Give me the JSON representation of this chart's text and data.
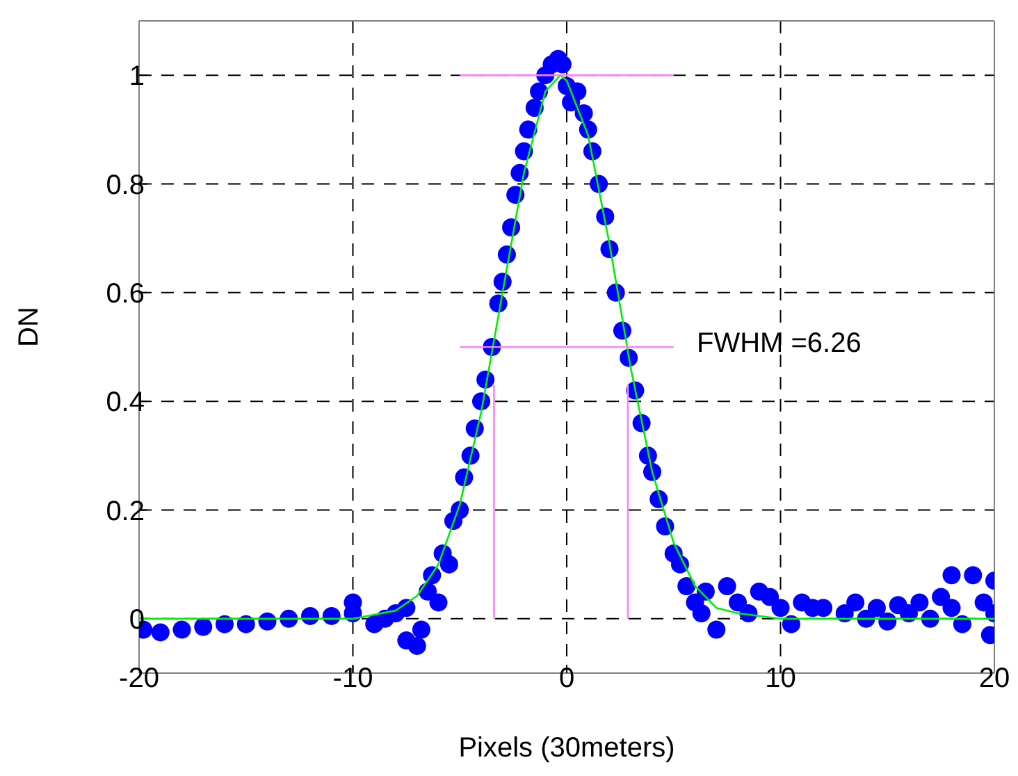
{
  "chart_data": {
    "type": "scatter",
    "xlabel": "Pixels (30meters)",
    "ylabel": "DN",
    "annotations": [
      "FWHM =6.26"
    ],
    "xlim": [
      -20,
      20
    ],
    "xticks": [
      -20,
      -10,
      0,
      10,
      20
    ],
    "ylim": [
      -0.1,
      1.1
    ],
    "yticks": [
      0,
      0.2,
      0.4,
      0.6,
      0.8,
      1
    ],
    "grid": true,
    "legend": false,
    "series": [
      {
        "type": "scatter",
        "marker": "circle",
        "color": "#0000ff",
        "x": [
          -19.8,
          -19,
          -18,
          -17,
          -16,
          -15,
          -14,
          -13,
          -12,
          -11,
          -10,
          -10,
          -9,
          -8.5,
          -8,
          -7.5,
          -7.5,
          -7,
          -6.8,
          -6.5,
          -6.3,
          -6,
          -5.8,
          -5.5,
          -5.3,
          -5,
          -4.8,
          -4.5,
          -4.3,
          -4,
          -3.8,
          -3.5,
          -3.2,
          -3,
          -2.8,
          -2.6,
          -2.4,
          -2.2,
          -2,
          -1.8,
          -1.5,
          -1.3,
          -1,
          -0.7,
          -0.4,
          -0.2,
          0,
          0.2,
          0.5,
          0.8,
          1,
          1.2,
          1.5,
          1.8,
          2,
          2.3,
          2.6,
          2.9,
          3.2,
          3.5,
          3.8,
          4,
          4.3,
          4.6,
          5,
          5.3,
          5.6,
          6,
          6.3,
          6.5,
          7,
          7.5,
          8,
          8.5,
          9,
          9.5,
          10,
          10.5,
          11,
          11.5,
          12,
          13,
          13.5,
          14,
          14.5,
          15,
          15.5,
          16,
          16.5,
          17,
          17.5,
          18,
          18,
          18.5,
          19,
          19.5,
          20,
          19.8,
          20
        ],
        "values": [
          -0.02,
          -0.025,
          -0.02,
          -0.015,
          -0.01,
          -0.01,
          -0.005,
          0,
          0.005,
          0.005,
          0.01,
          0.03,
          -0.01,
          0,
          0.01,
          0.02,
          -0.04,
          -0.05,
          -0.02,
          0.05,
          0.08,
          0.03,
          0.12,
          0.1,
          0.18,
          0.2,
          0.26,
          0.3,
          0.35,
          0.4,
          0.44,
          0.5,
          0.58,
          0.62,
          0.67,
          0.72,
          0.78,
          0.82,
          0.86,
          0.9,
          0.94,
          0.97,
          1,
          1.02,
          1.03,
          1.02,
          0.98,
          0.95,
          0.97,
          0.93,
          0.9,
          0.86,
          0.8,
          0.74,
          0.68,
          0.6,
          0.53,
          0.48,
          0.42,
          0.36,
          0.3,
          0.27,
          0.22,
          0.17,
          0.12,
          0.1,
          0.06,
          0.03,
          0.01,
          0.05,
          -0.02,
          0.06,
          0.03,
          0.01,
          0.05,
          0.04,
          0.02,
          -0.01,
          0.03,
          0.02,
          0.02,
          0.01,
          0.03,
          0,
          0.02,
          -0.005,
          0.025,
          0.01,
          0.03,
          0,
          0.04,
          0.02,
          0.08,
          -0.01,
          0.08,
          0.03,
          0.07,
          -0.03,
          0.01
        ]
      },
      {
        "type": "line",
        "marker": "none",
        "color": "#00ee00",
        "x": [
          -20,
          -10,
          -8,
          -7,
          -6,
          -5,
          -4,
          -3,
          -2,
          -1,
          -0.3,
          0,
          1,
          2,
          3,
          4,
          5,
          6,
          7,
          8,
          10,
          20
        ],
        "values": [
          0,
          0,
          0.015,
          0.042,
          0.1,
          0.21,
          0.38,
          0.6,
          0.82,
          0.97,
          1,
          0.99,
          0.89,
          0.69,
          0.46,
          0.27,
          0.14,
          0.06,
          0.02,
          0.01,
          0,
          0
        ]
      },
      {
        "type": "line",
        "marker": "none",
        "color": "#ff80ff",
        "x": [
          -5,
          5
        ],
        "values": [
          1,
          1
        ]
      },
      {
        "type": "line",
        "marker": "none",
        "color": "#ff80ff",
        "x": [
          -5,
          5
        ],
        "values": [
          0.5,
          0.5
        ]
      },
      {
        "type": "line",
        "marker": "none",
        "color": "#ff80ff",
        "x": [
          -3.4,
          -3.4
        ],
        "values": [
          0,
          0.43
        ]
      },
      {
        "type": "line",
        "marker": "none",
        "color": "#ff80ff",
        "x": [
          2.86,
          2.86
        ],
        "values": [
          0,
          0.43
        ]
      }
    ]
  }
}
